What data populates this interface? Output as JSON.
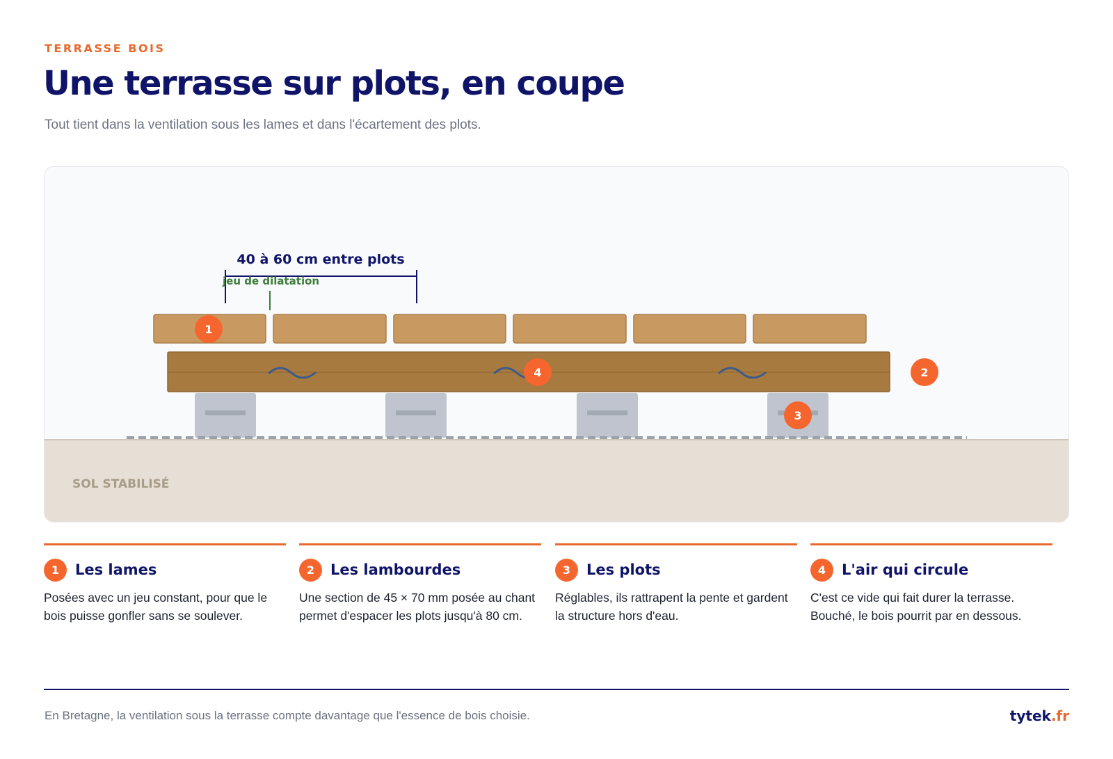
{
  "header": {
    "eyebrow": "TERRASSE BOIS",
    "title": "Une terrasse sur plots, en coupe",
    "subtitle": "Tout tient dans la ventilation sous les lames et dans l'écartement des plots."
  },
  "diagram": {
    "spacing_label": "40 à 60 cm entre plots",
    "gap_label": "jeu de dilatation",
    "ground_label": "SOL STABILISÉ",
    "markers": [
      "1",
      "2",
      "3",
      "4"
    ],
    "colors": {
      "lame": "#c89a62",
      "lambourde": "#a77a3f",
      "plot": "#bfc4ce",
      "ground": "#e6dfd5",
      "accent": "#f5652e",
      "navy": "#0f1468",
      "green": "#3f7d3a"
    }
  },
  "cards": [
    {
      "num": "1",
      "title": "Les lames",
      "text": "Posées avec un jeu constant, pour que le bois puisse gonfler sans se soulever."
    },
    {
      "num": "2",
      "title": "Les lambourdes",
      "text": "Une section de 45 × 70 mm posée au chant permet d'espacer les plots jusqu'à 80 cm."
    },
    {
      "num": "3",
      "title": "Les plots",
      "text": "Réglables, ils rattrapent la pente et gardent la structure hors d'eau."
    },
    {
      "num": "4",
      "title": "L'air qui circule",
      "text": "C'est ce vide qui fait durer la terrasse. Bouché, le bois pourrit par en dessous."
    }
  ],
  "footer": {
    "note": "En Bretagne, la ventilation sous la terrasse compte davantage que l'essence de bois choisie.",
    "brand_name": "tytek",
    "brand_tld": ".fr"
  }
}
